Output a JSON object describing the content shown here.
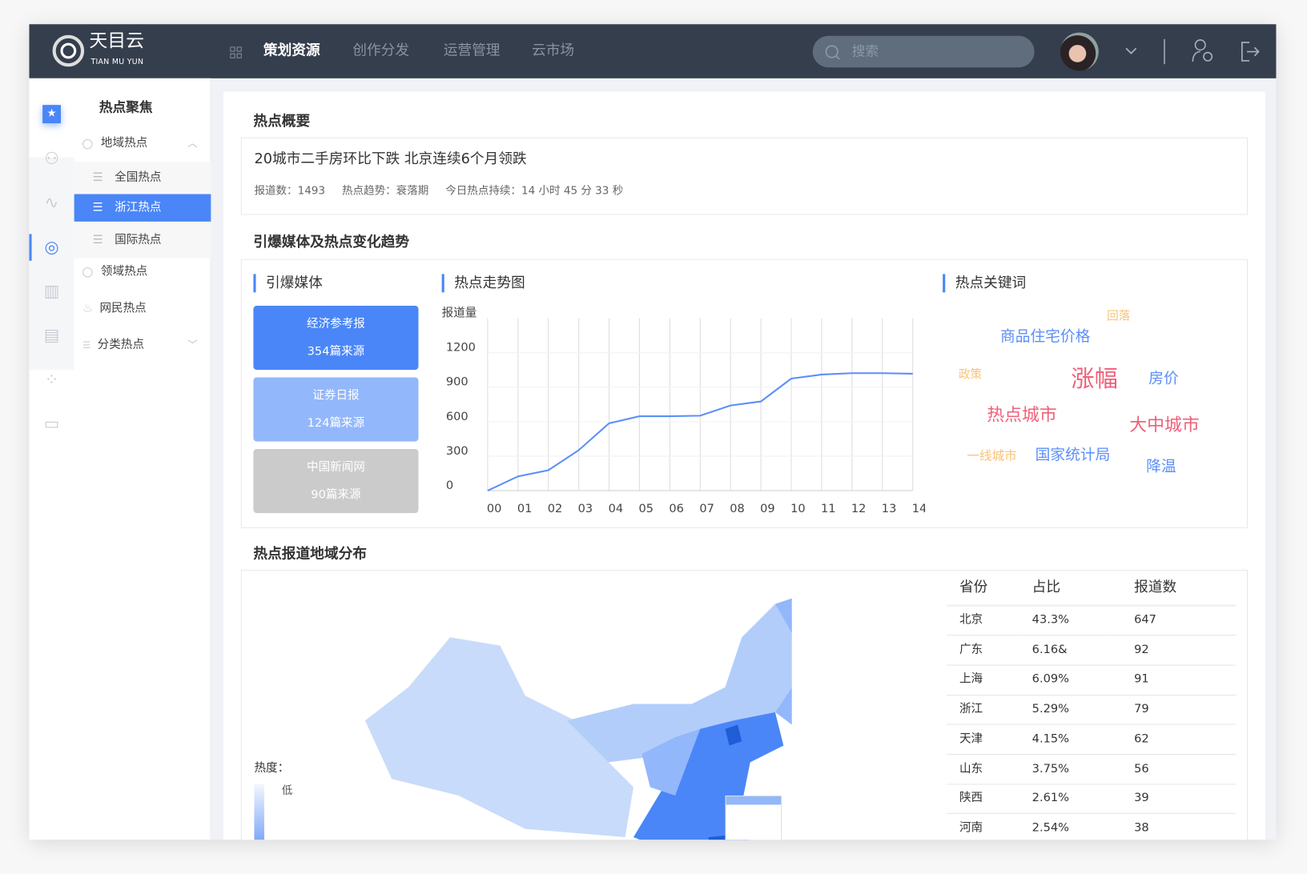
{
  "header": {
    "logo_title": "天目云",
    "logo_subtitle": "TIAN MU YUN",
    "nav": [
      "策划资源",
      "创作分发",
      "运营管理",
      "云市场"
    ],
    "active_nav": 0,
    "search_placeholder": "搜索"
  },
  "rail": {
    "icons": [
      "star-icon",
      "team-icon",
      "route-icon",
      "hotspot-icon",
      "bar-chart-icon",
      "document-check-icon",
      "apps-icon",
      "monitor-icon"
    ],
    "active": 3
  },
  "sidebar": {
    "title": "热点聚焦",
    "items": [
      {
        "label": "地域热点",
        "icon": "location-icon",
        "expanded": true,
        "children": [
          "全国热点",
          "浙江热点",
          "国际热点"
        ],
        "active_child": 1
      },
      {
        "label": "领域热点",
        "icon": "globe-icon"
      },
      {
        "label": "网民热点",
        "icon": "fire-icon"
      },
      {
        "label": "分类热点",
        "icon": "category-icon",
        "expanded": false
      }
    ]
  },
  "summary": {
    "section_title": "热点概要",
    "headline": "20城市二手房环比下跌 北京连续6个月领跌",
    "report_count_label": "报道数：",
    "report_count": "1493",
    "trend_label": "热点趋势：",
    "trend": "衰落期",
    "duration_label": "今日热点持续：",
    "duration": "14 小时 45 分 33 秒"
  },
  "trend_section": {
    "section_title": "引爆媒体及热点变化趋势",
    "media_title": "引爆媒体",
    "chart_title": "热点走势图",
    "keywords_title": "热点关键词",
    "media": [
      {
        "name": "经济参考报",
        "sources": "354篇来源",
        "color": "#4a86f7"
      },
      {
        "name": "证券日报",
        "sources": "124篇来源",
        "color": "#93b7fb"
      },
      {
        "name": "中国新闻网",
        "sources": "90篇来源",
        "color": "#cbcbcb"
      }
    ],
    "keywords": [
      {
        "text": "回落",
        "color": "#f8c37a"
      },
      {
        "text": "商品住宅价格",
        "color": "#5b8ff9"
      },
      {
        "text": "政策",
        "color": "#f8c37a"
      },
      {
        "text": "涨幅",
        "color": "#f0607a"
      },
      {
        "text": "房价",
        "color": "#5b8ff9"
      },
      {
        "text": "热点城市",
        "color": "#f0607a"
      },
      {
        "text": "大中城市",
        "color": "#f0607a"
      },
      {
        "text": "一线城市",
        "color": "#f8c37a"
      },
      {
        "text": "国家统计局",
        "color": "#5b8ff9"
      },
      {
        "text": "降温",
        "color": "#5b8ff9"
      }
    ]
  },
  "chart_data": {
    "type": "line",
    "ylabel": "报道量",
    "categories": [
      "00",
      "01",
      "02",
      "03",
      "04",
      "05",
      "06",
      "07",
      "08",
      "09",
      "10",
      "11",
      "12",
      "13",
      "14"
    ],
    "values": [
      0,
      124,
      178,
      352,
      586,
      647,
      647,
      652,
      741,
      776,
      975,
      1010,
      1022,
      1022,
      1017
    ],
    "yticks": [
      "0",
      "300",
      "600",
      "900",
      "1200"
    ],
    "ylim": [
      0,
      1500
    ],
    "grid": true,
    "line_color": "#5b8ff9"
  },
  "region": {
    "section_title": "热点报道地域分布",
    "legend_title": "热度：",
    "legend_low": "低",
    "table": {
      "headers": [
        "省份",
        "占比",
        "报道数"
      ],
      "rows": [
        [
          "北京",
          "43.3%",
          "647"
        ],
        [
          "广东",
          "6.16&",
          "92"
        ],
        [
          "上海",
          "6.09%",
          "91"
        ],
        [
          "浙江",
          "5.29%",
          "79"
        ],
        [
          "天津",
          "4.15%",
          "62"
        ],
        [
          "山东",
          "3.75%",
          "56"
        ],
        [
          "陕西",
          "2.61%",
          "39"
        ],
        [
          "河南",
          "2.54%",
          "38"
        ]
      ]
    }
  }
}
